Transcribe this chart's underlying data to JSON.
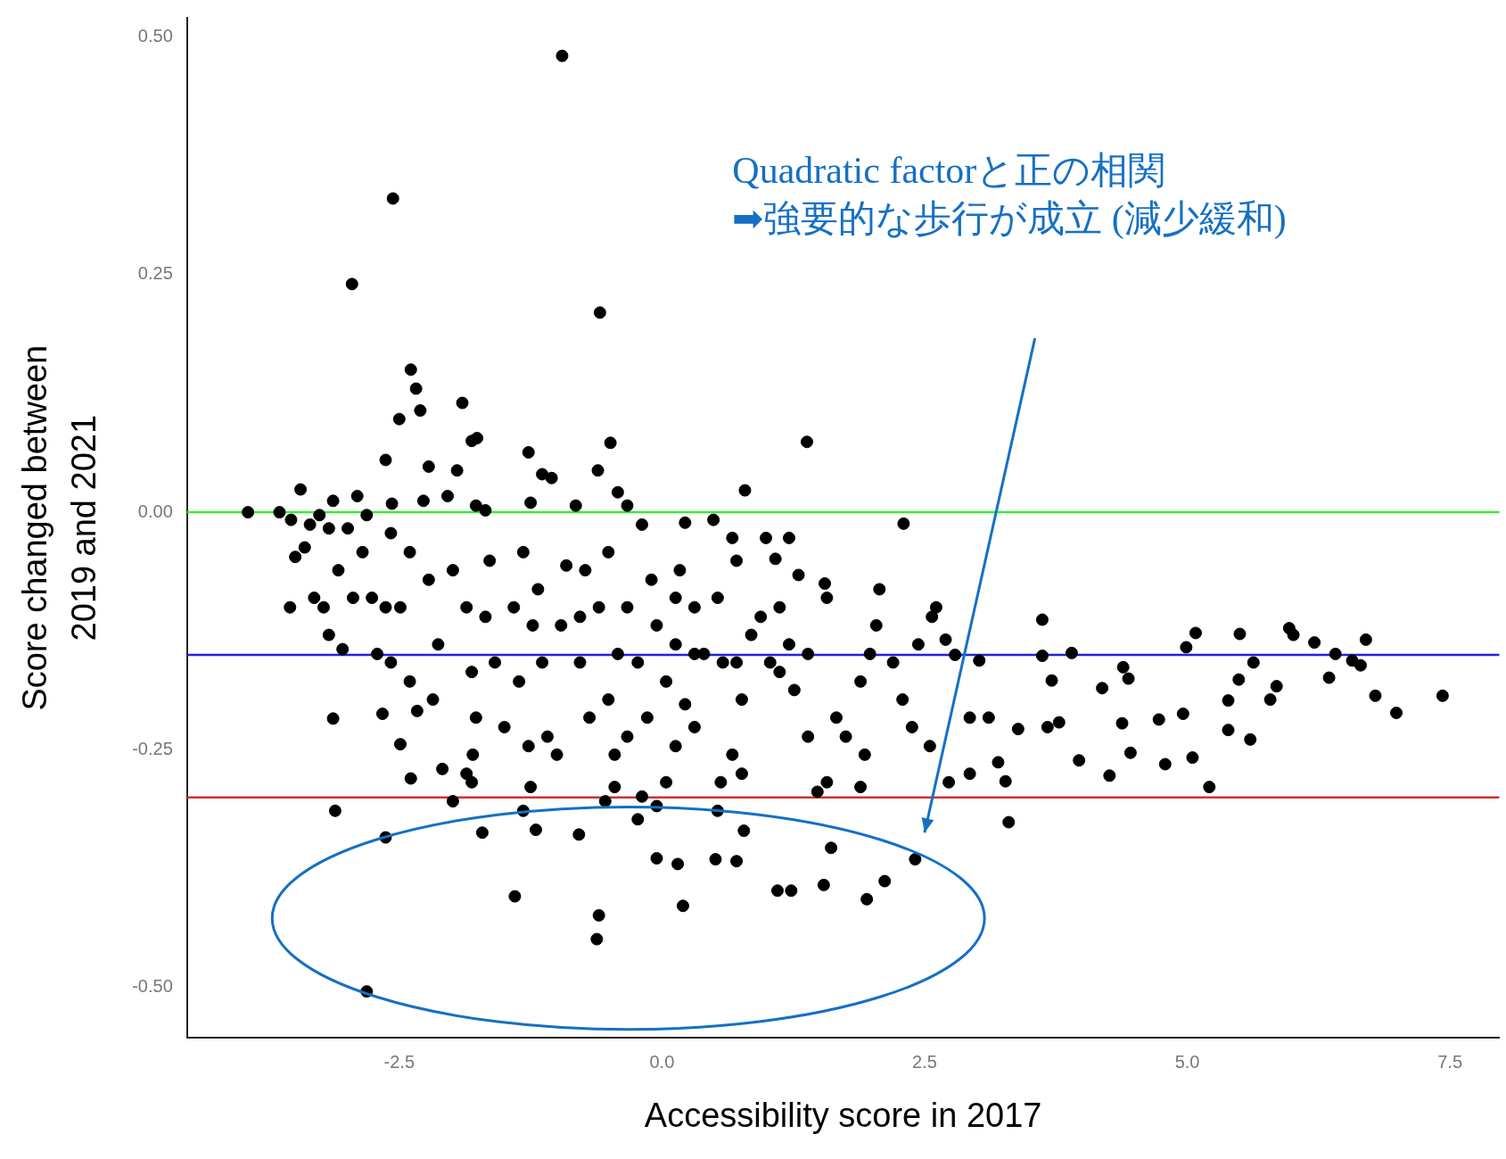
{
  "chart_data": {
    "type": "scatter",
    "xlabel": "Accessibility score in 2017",
    "ylabel": "Score changed between\n2019 and 2021",
    "xlim": [
      -4.52,
      7.97
    ],
    "ylim": [
      -0.553,
      0.52
    ],
    "xticks": [
      {
        "value": -2.5,
        "label": "-2.5"
      },
      {
        "value": 0,
        "label": "0.0"
      },
      {
        "value": 2.5,
        "label": "2.5"
      },
      {
        "value": 5,
        "label": "5.0"
      },
      {
        "value": 7.5,
        "label": "7.5"
      }
    ],
    "yticks": [
      {
        "value": -0.5,
        "label": "-0.50"
      },
      {
        "value": -0.25,
        "label": "-0.25"
      },
      {
        "value": 0,
        "label": "0.00"
      },
      {
        "value": 0.25,
        "label": "0.25"
      },
      {
        "value": 0.5,
        "label": "0.50"
      }
    ],
    "grid": false,
    "legend": false,
    "marker": "circle",
    "ref_lines": [
      {
        "axis": "y",
        "value": 0,
        "color": "#33ee33"
      },
      {
        "axis": "y",
        "value": -0.15,
        "color": "#2222dd"
      },
      {
        "axis": "y",
        "value": -0.3,
        "color": "#cc3333"
      }
    ],
    "annotations": [
      "Quadratic factorと正の相関",
      "➡強要的な歩行が成立 (減少緩和)"
    ],
    "series": [
      {
        "color": "#000000",
        "x": [
          -0.95,
          -2.56,
          -2.95,
          -0.59,
          -2.39,
          -2.34,
          -2.3,
          -2.5,
          -1.9,
          -1.76,
          -1.27,
          -0.49,
          1.38,
          0.79,
          2.3,
          -3.94,
          -3.64,
          -3.11,
          -2.63,
          -2.81,
          -1.71,
          -1.4,
          -1.2,
          -0.79,
          -0.6,
          -0.62,
          -0.05,
          0.15,
          0.2,
          0.51,
          0.71,
          0.78,
          1.1,
          1.23,
          1.54,
          1.61,
          1.95,
          2.12,
          2.41,
          3.3,
          5.21,
          3.62,
          3.62,
          3.9,
          3.71,
          3.97,
          3.67,
          3.78,
          3.39,
          4.19,
          4.39,
          4.44,
          4.38,
          4.46,
          4.26,
          4.73,
          4.79,
          4.96,
          5.05,
          4.99,
          5.08,
          5.39,
          5.39,
          5.49,
          5.5,
          5.63,
          5.6,
          5.79,
          5.85,
          6.01,
          5.97,
          6.21,
          6.35,
          6.41,
          6.57,
          6.7,
          6.65,
          6.79,
          6.99,
          7.43,
          2.57,
          2.61,
          2.44,
          2.7,
          2.79,
          3.02,
          3.11,
          2.93,
          3.2,
          3.27,
          2.93,
          2.73,
          2.55,
          2.38,
          2.29,
          2.2,
          2.04,
          2.07,
          1.98,
          1.89,
          1.93,
          1.89,
          1.75,
          1.66,
          1.57,
          1.55,
          1.3,
          1.21,
          0.99,
          1.08,
          1.48,
          1.57,
          1.39,
          1.26,
          1.03,
          0.94,
          1.12,
          0.85,
          0.76,
          0.67,
          0.56,
          0.53,
          0.76,
          0.71,
          0.53,
          0.49,
          0.67,
          0.71,
          0.22,
          0.17,
          0.31,
          0.13,
          0.22,
          0.31,
          0.13,
          0.04,
          -0.19,
          -0.23,
          -0.05,
          0.04,
          -0.05,
          -0.1,
          -0.19,
          -0.33,
          -0.42,
          -0.61,
          -0.51,
          -0.6,
          -0.42,
          -0.51,
          -0.45,
          -0.45,
          -0.54,
          -0.69,
          -0.78,
          -0.73,
          -0.82,
          -0.91,
          -0.96,
          -1.0,
          -1.09,
          -1.14,
          -1.23,
          -1.18,
          -1.05,
          -1.14,
          -1.25,
          -1.32,
          -1.41,
          -1.36,
          -1.27,
          -1.25,
          -1.32,
          -1.5,
          -1.59,
          -1.68,
          -1.64,
          -1.68,
          -1.77,
          -1.81,
          -1.95,
          -2.04,
          -1.99,
          -1.86,
          -1.81,
          -1.77,
          -1.8,
          -1.81,
          -1.86,
          -1.99,
          -2.09,
          -2.18,
          -2.13,
          -2.22,
          -2.27,
          -2.22,
          -2.4,
          -2.49,
          -2.4,
          -2.39,
          -2.33,
          -2.58,
          -2.63,
          -2.58,
          -2.57,
          -2.63,
          -2.49,
          -2.66,
          -2.71,
          -2.76,
          -2.81,
          -2.9,
          -2.85,
          -2.94,
          -3.04,
          -3.13,
          -3.08,
          -3.17,
          -3.13,
          -3.26,
          -3.4,
          -3.44,
          -3.49,
          -3.54,
          -3.31,
          -3.22,
          -3.17,
          -3.53,
          -3.35,
          -2.99,
          0.4,
          0.31,
          0.58,
          1.21,
          1.39,
          1.12,
          -0.78,
          -0.33,
          -0.23,
          -0.14,
          -0.33,
          0.13
        ],
        "values": [
          0.48,
          0.33,
          0.24,
          0.21,
          0.15,
          0.13,
          0.107,
          0.098,
          0.115,
          0.078,
          0.063,
          0.073,
          0.074,
          0.023,
          -0.012,
          0,
          0,
          -0.314,
          -0.342,
          -0.504,
          -0.337,
          -0.404,
          -0.334,
          -0.339,
          -0.424,
          -0.449,
          -0.364,
          -0.37,
          -0.414,
          -0.365,
          -0.367,
          -0.335,
          -0.398,
          -0.398,
          -0.392,
          -0.353,
          -0.407,
          -0.388,
          -0.365,
          -0.326,
          -0.289,
          -0.113,
          -0.151,
          -0.148,
          -0.177,
          -0.261,
          -0.226,
          -0.221,
          -0.228,
          -0.185,
          -0.163,
          -0.175,
          -0.222,
          -0.253,
          -0.277,
          -0.218,
          -0.265,
          -0.212,
          -0.258,
          -0.142,
          -0.127,
          -0.198,
          -0.229,
          -0.176,
          -0.128,
          -0.158,
          -0.239,
          -0.197,
          -0.183,
          -0.129,
          -0.122,
          -0.137,
          -0.174,
          -0.149,
          -0.156,
          -0.134,
          -0.161,
          -0.193,
          -0.211,
          -0.193,
          -0.11,
          -0.1,
          -0.139,
          -0.134,
          -0.15,
          -0.156,
          -0.216,
          -0.216,
          -0.263,
          -0.283,
          -0.275,
          -0.284,
          -0.246,
          -0.226,
          -0.197,
          -0.158,
          -0.119,
          -0.081,
          -0.149,
          -0.178,
          -0.255,
          -0.289,
          -0.236,
          -0.216,
          -0.09,
          -0.075,
          -0.066,
          -0.027,
          -0.027,
          -0.049,
          -0.294,
          -0.284,
          -0.236,
          -0.187,
          -0.158,
          -0.11,
          -0.1,
          -0.129,
          -0.197,
          -0.255,
          -0.284,
          -0.314,
          -0.275,
          -0.158,
          -0.09,
          -0.008,
          -0.027,
          -0.051,
          -0.011,
          -0.061,
          -0.1,
          -0.139,
          -0.202,
          -0.226,
          -0.246,
          -0.284,
          -0.299,
          -0.323,
          -0.309,
          -0.178,
          -0.119,
          -0.071,
          -0.013,
          0.007,
          0.021,
          0.044,
          -0.042,
          -0.1,
          -0.149,
          -0.197,
          -0.255,
          -0.289,
          -0.304,
          -0.216,
          -0.158,
          -0.061,
          0.007,
          -0.056,
          -0.119,
          -0.255,
          -0.236,
          -0.158,
          -0.119,
          -0.081,
          0.036,
          0.04,
          0.01,
          -0.042,
          -0.1,
          -0.178,
          -0.246,
          -0.289,
          -0.314,
          -0.226,
          -0.158,
          -0.11,
          -0.051,
          0.002,
          0.007,
          0.075,
          0.044,
          0.017,
          -0.061,
          -0.1,
          -0.168,
          -0.216,
          -0.255,
          -0.284,
          -0.275,
          -0.304,
          -0.27,
          -0.197,
          -0.139,
          -0.071,
          0.012,
          0.048,
          -0.042,
          -0.1,
          -0.178,
          -0.28,
          -0.209,
          -0.158,
          -0.1,
          -0.022,
          0.009,
          0.055,
          -0.244,
          -0.212,
          -0.149,
          -0.09,
          -0.003,
          0.017,
          -0.042,
          -0.09,
          -0.144,
          -0.217,
          -0.061,
          -0.017,
          0.012,
          -0.003,
          -0.037,
          0.024,
          -0.047,
          -0.1,
          -0.09,
          -0.1,
          -0.129,
          -0.008,
          -0.013,
          -0.017,
          -0.149,
          -0.149,
          -0.158,
          -0.139,
          -0.149,
          -0.168,
          -0.11,
          -0.1,
          -0.158,
          -0.216,
          -0.236,
          -0.09
        ]
      }
    ]
  }
}
